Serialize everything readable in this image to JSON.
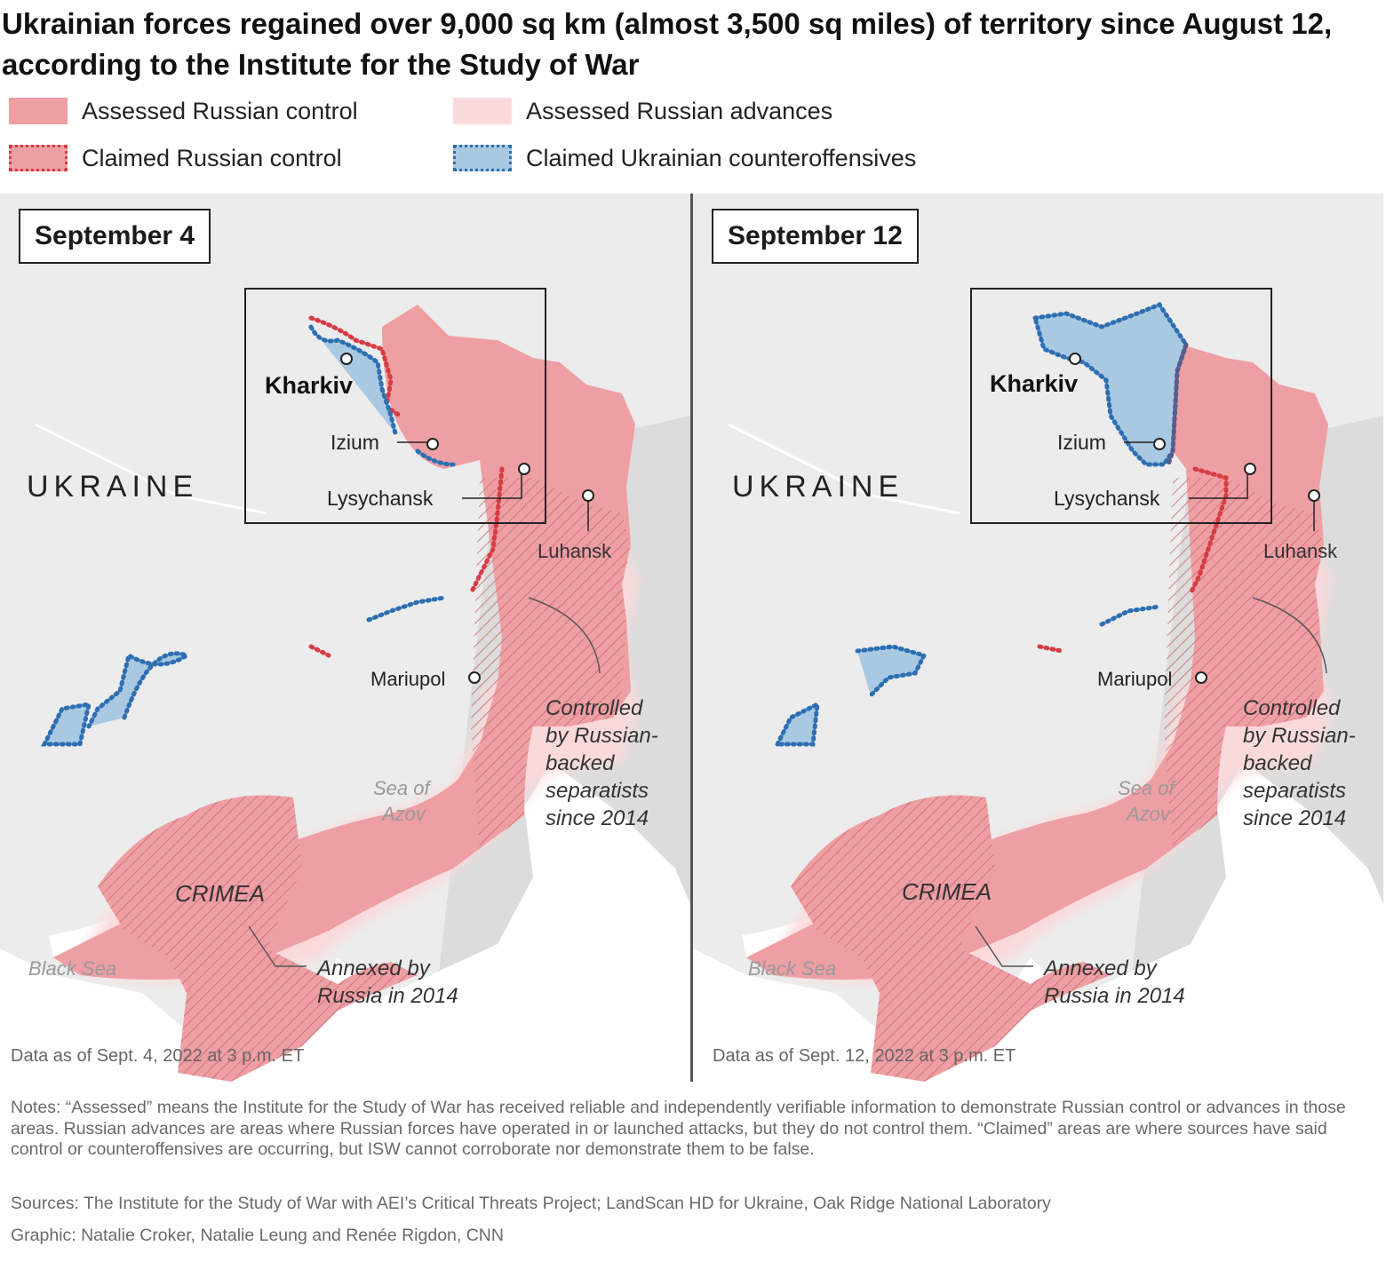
{
  "title": "Ukrainian forces regained over 9,000 sq km (almost 3,500 sq miles) of territory since August 12, according to the Institute for the Study of War",
  "legend": [
    {
      "label": "Assessed Russian control",
      "swatch": "assessed-control",
      "color": "#ee9fa4"
    },
    {
      "label": "Assessed Russian advances",
      "swatch": "assessed-advances",
      "color": "#fbd9db"
    },
    {
      "label": "Claimed Russian control",
      "swatch": "claimed-control",
      "color": "#d73b43"
    },
    {
      "label": "Claimed Ukrainian counteroffensives",
      "swatch": "claimed-ukrainian",
      "color": "#2d6fb2"
    }
  ],
  "panels": [
    {
      "date": "September 4",
      "data_as_of": "Data as of Sept. 4, 2022 at 3 p.m. ET"
    },
    {
      "date": "September 12",
      "data_as_of": "Data as of Sept. 12, 2022 at 3 p.m. ET"
    }
  ],
  "map_labels": {
    "country": "UKRAINE",
    "kharkiv": "Kharkiv",
    "izium": "Izium",
    "lysychansk": "Lysychansk",
    "luhansk": "Luhansk",
    "mariupol": "Mariupol",
    "crimea": "CRIMEA",
    "sea_of_azov_1": "Sea of",
    "sea_of_azov_2": "Azov",
    "black_sea": "Black Sea",
    "separatists_1": "Controlled",
    "separatists_2": "by Russian-",
    "separatists_3": "backed",
    "separatists_4": "separatists",
    "separatists_5": "since 2014",
    "annexed_1": "Annexed by",
    "annexed_2": "Russia in 2014"
  },
  "notes": "Notes: “Assessed” means the Institute for the Study of War has received reliable and independently verifiable information to demonstrate Russian control or advances in those areas. Russian advances are areas where Russian forces have operated in or launched attacks, but they do not control them. “Claimed” areas are where sources have said control or counteroffensives are occurring, but ISW cannot corroborate nor demonstrate them to be false.",
  "sources": "Sources: The Institute for the Study of War with AEI’s Critical Threats Project; LandScan HD for Ukraine, Oak Ridge National Laboratory",
  "credit": "Graphic: Natalie Croker, Natalie Leung and Renée Rigdon, CNN",
  "colors": {
    "land": "#ececec",
    "russia_land": "#dadada",
    "sea": "#ffffff",
    "russian_control": "#ee9fa4",
    "claimed_red": "#d73b43",
    "claimed_blue": "#2d6fb2",
    "ukrainian_fill": "#a9c8e2"
  }
}
